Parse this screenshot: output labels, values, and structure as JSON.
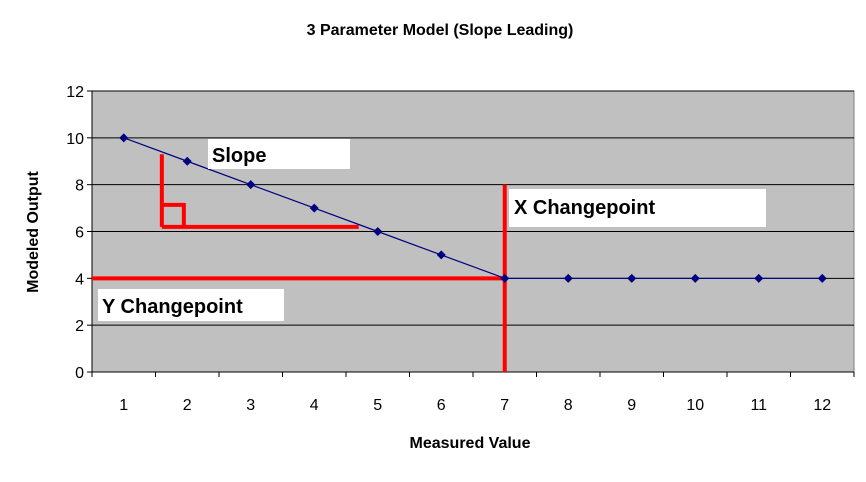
{
  "chart_data": {
    "type": "line",
    "title": "3 Parameter Model (Slope Leading)",
    "xlabel": "Measured Value",
    "ylabel": "Modeled Output",
    "categories": [
      "1",
      "2",
      "3",
      "4",
      "5",
      "6",
      "7",
      "8",
      "9",
      "10",
      "11",
      "12"
    ],
    "series": [
      {
        "values": [
          10,
          9,
          8,
          7,
          6,
          5,
          4,
          4,
          4,
          4,
          4,
          4
        ]
      }
    ],
    "ylim": [
      0,
      12
    ],
    "yticks": [
      0,
      2,
      4,
      6,
      8,
      10,
      12
    ],
    "grid": true,
    "legend": "none",
    "annotations": {
      "slope": "Slope",
      "x_changepoint": "X Changepoint",
      "y_changepoint": "Y Changepoint"
    },
    "colors": {
      "plot_background": "#c0c0c0",
      "series": "#000080",
      "annotation_lines": "#ff0000",
      "label_box": "#ffffff"
    }
  }
}
